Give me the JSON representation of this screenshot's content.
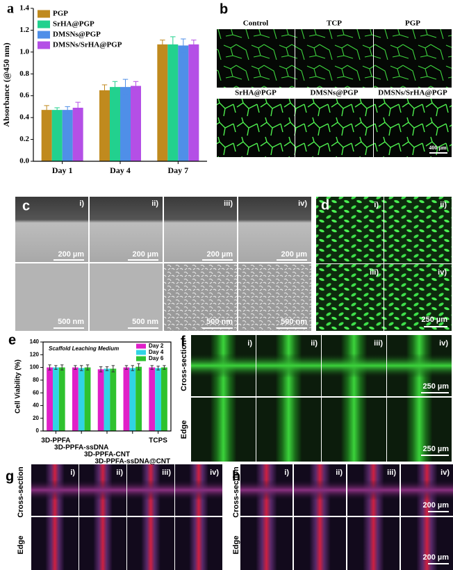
{
  "chart_data": [
    {
      "type": "bar",
      "panel_label": "a",
      "ylabel": "Absorbance (@450 nm)",
      "categories": [
        "Day 1",
        "Day 4",
        "Day 7"
      ],
      "ylim": [
        0,
        1.4
      ],
      "yticks": [
        {
          "value": 0,
          "label": "0.0"
        },
        0.2,
        0.4,
        0.6,
        0.8,
        {
          "value": 1,
          "label": "1.0"
        },
        1.2,
        1.4
      ],
      "legend": "upper left",
      "series": [
        {
          "name": "PGP",
          "color": "#c08a1e",
          "values": [
            0.47,
            0.65,
            1.07
          ],
          "errors": [
            0.04,
            0.05,
            0.04
          ]
        },
        {
          "name": "SrHA@PGP",
          "color": "#22d18e",
          "values": [
            0.47,
            0.68,
            1.07
          ],
          "errors": [
            0.02,
            0.05,
            0.07
          ]
        },
        {
          "name": "DMSNs@PGP",
          "color": "#4f8fe8",
          "values": [
            0.47,
            0.68,
            1.06
          ],
          "errors": [
            0.03,
            0.07,
            0.06
          ]
        },
        {
          "name": "DMSNs/SrHA@PGP",
          "color": "#b44fe6",
          "values": [
            0.49,
            0.69,
            1.07
          ],
          "errors": [
            0.05,
            0.04,
            0.04
          ]
        }
      ]
    },
    {
      "type": "bar",
      "panel_label": "e",
      "title": "Scaffold Leaching Medium",
      "ylabel": "Cell Viability (%)",
      "categories": [
        "3D-PPFA",
        "3D-PPFA-ssDNA",
        "3D-PPFA-CNT",
        "3D-PPFA-ssDNA@CNT",
        "TCPS"
      ],
      "ylim": [
        0,
        140
      ],
      "yticks": [
        0,
        20,
        40,
        60,
        80,
        100,
        120,
        140
      ],
      "legend": "upper right",
      "series": [
        {
          "name": "Day 2",
          "color": "#e020c8",
          "values": [
            100,
            100,
            97,
            100,
            100
          ],
          "errors": [
            4,
            3,
            4,
            3,
            3
          ]
        },
        {
          "name": "Day 4",
          "color": "#30d4e4",
          "values": [
            100,
            99,
            98,
            99,
            99
          ],
          "errors": [
            3,
            4,
            3,
            4,
            3
          ]
        },
        {
          "name": "Day 6",
          "color": "#2ec22e",
          "values": [
            100,
            100,
            98,
            101,
            100
          ],
          "errors": [
            4,
            4,
            5,
            5,
            3
          ]
        }
      ]
    }
  ],
  "figure": {
    "b": {
      "letter": "b",
      "labels": [
        "Control",
        "TCP",
        "PGP",
        "SrHA@PGP",
        "DMSNs@PGP",
        "DMSNs/SrHA@PGP"
      ],
      "scale": "400 µm"
    },
    "c": {
      "letter": "c",
      "numerals": [
        "i)",
        "ii)",
        "iii)",
        "iv)"
      ],
      "scale_top": "200 µm",
      "scale_bottom": "500 nm"
    },
    "d": {
      "letter": "d",
      "numerals": [
        "i)",
        "ii)",
        "iii)",
        "iv)"
      ],
      "scale": "250 µm"
    },
    "f": {
      "letter": "f",
      "rows": [
        "Cross-section",
        "Edge"
      ],
      "numerals": [
        "i)",
        "ii)",
        "iii)",
        "iv)"
      ],
      "scale": "250 µm"
    },
    "g": {
      "letter": "g",
      "rows": [
        "Cross-section",
        "Edge"
      ],
      "numerals": [
        "i)",
        "ii)",
        "iii)",
        "iv)"
      ]
    },
    "h": {
      "letter": "h",
      "rows": [
        "Cross-section",
        "Edge"
      ],
      "numerals": [
        "i)",
        "ii)",
        "iii)",
        "iv)"
      ],
      "scale": "200 µm"
    }
  }
}
